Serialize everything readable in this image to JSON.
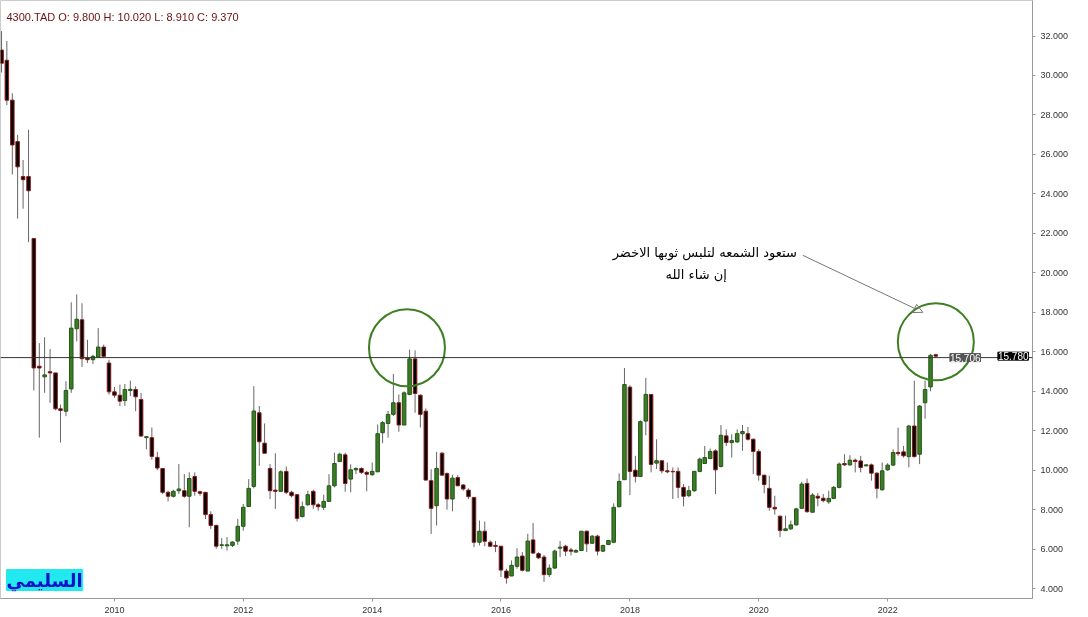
{
  "chart_data": {
    "type": "candlestick",
    "title": "4300.TAD  O: 9.800  H: 10.020  L: 8.910  C: 9.370",
    "x": [
      "2008-04",
      "2008-05",
      "2008-06",
      "2008-07",
      "2008-08",
      "2008-09",
      "2008-10",
      "2008-11",
      "2008-12",
      "2009-01",
      "2009-02",
      "2009-03",
      "2009-04",
      "2009-05",
      "2009-06",
      "2009-07",
      "2009-08",
      "2009-09",
      "2009-10",
      "2009-11",
      "2009-12",
      "2010-01",
      "2010-02",
      "2010-03",
      "2010-04",
      "2010-05",
      "2010-06",
      "2010-07",
      "2010-08",
      "2010-09",
      "2010-10",
      "2010-11",
      "2010-12",
      "2011-01",
      "2011-02",
      "2011-03",
      "2011-04",
      "2011-05",
      "2011-06",
      "2011-07",
      "2011-08",
      "2011-09",
      "2011-10",
      "2011-11",
      "2011-12",
      "2012-01",
      "2012-02",
      "2012-03",
      "2012-04",
      "2012-05",
      "2012-06",
      "2012-07",
      "2012-08",
      "2012-09",
      "2012-10",
      "2012-11",
      "2012-12",
      "2013-01",
      "2013-02",
      "2013-03",
      "2013-04",
      "2013-05",
      "2013-06",
      "2013-07",
      "2013-08",
      "2013-09",
      "2013-10",
      "2013-11",
      "2013-12",
      "2014-01",
      "2014-02",
      "2014-03",
      "2014-04",
      "2014-05",
      "2014-06",
      "2014-07",
      "2014-08",
      "2014-09",
      "2014-10",
      "2014-11",
      "2014-12",
      "2015-01",
      "2015-02",
      "2015-03",
      "2015-04",
      "2015-05",
      "2015-06",
      "2015-07",
      "2015-08",
      "2015-09",
      "2015-10",
      "2015-11",
      "2015-12",
      "2016-01",
      "2016-02",
      "2016-03",
      "2016-04",
      "2016-05",
      "2016-06",
      "2016-07",
      "2016-08",
      "2016-09",
      "2016-10",
      "2016-11",
      "2016-12",
      "2017-01",
      "2017-02",
      "2017-03",
      "2017-04",
      "2017-05",
      "2017-06",
      "2017-07",
      "2017-08",
      "2017-09",
      "2017-10",
      "2017-11",
      "2017-12",
      "2018-01",
      "2018-02",
      "2018-03",
      "2018-04",
      "2018-05",
      "2018-06",
      "2018-07",
      "2018-08",
      "2018-09",
      "2018-10",
      "2018-11",
      "2018-12",
      "2019-01",
      "2019-02",
      "2019-03",
      "2019-04",
      "2019-05",
      "2019-06",
      "2019-07",
      "2019-08",
      "2019-09",
      "2019-10",
      "2019-11",
      "2019-12",
      "2020-01",
      "2020-02",
      "2020-03",
      "2020-04",
      "2020-05",
      "2020-06",
      "2020-07",
      "2020-08",
      "2020-09",
      "2020-10",
      "2020-11",
      "2020-12",
      "2021-01",
      "2021-02",
      "2021-03",
      "2021-04",
      "2021-05",
      "2021-06",
      "2021-07",
      "2021-08",
      "2021-09",
      "2021-10",
      "2021-11",
      "2021-12",
      "2022-01",
      "2022-02",
      "2022-03",
      "2022-04",
      "2022-05",
      "2022-06",
      "2022-07",
      "2022-08",
      "2022-09",
      "2022-10"
    ],
    "ohlc": [
      [
        31.29,
        32.25,
        30.15,
        30.62
      ],
      [
        30.77,
        31.75,
        28.5,
        28.75
      ],
      [
        28.75,
        29.1,
        24.98,
        26.48
      ],
      [
        26.65,
        26.99,
        22.75,
        25.37
      ],
      [
        24.88,
        25.72,
        23.25,
        24.72
      ],
      [
        24.88,
        27.25,
        21.55,
        24.16
      ],
      [
        21.74,
        21.74,
        14.04,
        15.18
      ],
      [
        15.27,
        16.44,
        11.65,
        15.18
      ],
      [
        14.73,
        16.74,
        13.92,
        14.83
      ],
      [
        14.99,
        16.14,
        13.41,
        14.93
      ],
      [
        14.93,
        14.93,
        13.04,
        13.11
      ],
      [
        13.11,
        13.33,
        11.4,
        13.03
      ],
      [
        12.99,
        14.51,
        12.74,
        14.04
      ],
      [
        14.12,
        18.51,
        13.92,
        17.2
      ],
      [
        17.17,
        18.91,
        16.53,
        17.65
      ],
      [
        17.62,
        18.46,
        15.23,
        15.65
      ],
      [
        15.68,
        16.61,
        15.43,
        15.6
      ],
      [
        15.6,
        15.85,
        15.38,
        15.77
      ],
      [
        15.72,
        17.2,
        15.72,
        16.24
      ],
      [
        16.24,
        16.36,
        15.68,
        15.77
      ],
      [
        15.43,
        15.6,
        13.83,
        13.97
      ],
      [
        13.97,
        14.22,
        13.67,
        13.8
      ],
      [
        13.8,
        14.34,
        13.25,
        13.5
      ],
      [
        13.53,
        14.37,
        13.25,
        14.09
      ],
      [
        14.04,
        14.54,
        13.75,
        14.1
      ],
      [
        14.09,
        14.25,
        12.99,
        13.72
      ],
      [
        13.58,
        13.92,
        11.7,
        11.73
      ],
      [
        11.65,
        11.7,
        11.06,
        11.7
      ],
      [
        11.65,
        12.16,
        10.53,
        10.7
      ],
      [
        10.65,
        10.93,
        10.0,
        10.11
      ],
      [
        10.09,
        10.09,
        8.79,
        8.88
      ],
      [
        8.88,
        8.96,
        8.42,
        8.68
      ],
      [
        8.68,
        9.01,
        8.62,
        8.93
      ],
      [
        8.96,
        10.31,
        8.79,
        9.05
      ],
      [
        8.96,
        9.8,
        8.6,
        8.68
      ],
      [
        8.68,
        9.89,
        7.11,
        9.58
      ],
      [
        9.68,
        9.89,
        8.71,
        8.93
      ],
      [
        8.91,
        8.96,
        8.71,
        8.83
      ],
      [
        8.88,
        8.88,
        7.53,
        7.75
      ],
      [
        7.75,
        7.92,
        7.03,
        7.2
      ],
      [
        7.2,
        7.25,
        6.02,
        6.15
      ],
      [
        6.19,
        6.56,
        6.02,
        6.22
      ],
      [
        6.17,
        6.61,
        5.93,
        6.22
      ],
      [
        6.19,
        6.4,
        6.1,
        6.36
      ],
      [
        6.41,
        7.53,
        6.22,
        7.16
      ],
      [
        7.16,
        8.29,
        6.94,
        8.12
      ],
      [
        8.16,
        9.55,
        8.16,
        9.08
      ],
      [
        9.18,
        14.26,
        9.08,
        13.0
      ],
      [
        12.91,
        13.25,
        10.22,
        11.44
      ],
      [
        11.37,
        12.37,
        10.86,
        10.86
      ],
      [
        10.09,
        10.31,
        8.54,
        8.96
      ],
      [
        8.99,
        10.86,
        8.04,
        8.93
      ],
      [
        8.93,
        10.0,
        8.9,
        9.92
      ],
      [
        9.94,
        10.19,
        8.79,
        8.88
      ],
      [
        8.88,
        8.96,
        8.62,
        8.71
      ],
      [
        8.76,
        8.79,
        7.4,
        7.56
      ],
      [
        7.65,
        8.41,
        7.61,
        8.15
      ],
      [
        8.25,
        8.96,
        8.2,
        8.76
      ],
      [
        8.93,
        9.01,
        8.04,
        8.25
      ],
      [
        8.25,
        8.34,
        7.95,
        8.15
      ],
      [
        8.12,
        8.76,
        7.98,
        8.42
      ],
      [
        8.42,
        9.8,
        8.41,
        9.21
      ],
      [
        9.21,
        10.89,
        9.13,
        10.34
      ],
      [
        10.44,
        10.89,
        10.42,
        10.81
      ],
      [
        10.78,
        10.89,
        8.91,
        9.33
      ],
      [
        9.55,
        10.3,
        8.88,
        10.02
      ],
      [
        10.02,
        10.14,
        9.8,
        10.09
      ],
      [
        10.09,
        10.14,
        9.8,
        9.89
      ],
      [
        9.89,
        9.97,
        8.93,
        9.8
      ],
      [
        9.77,
        10.39,
        9.72,
        9.94
      ],
      [
        9.92,
        12.32,
        9.9,
        11.85
      ],
      [
        11.9,
        12.5,
        11.37,
        12.41
      ],
      [
        12.37,
        13.0,
        11.65,
        12.83
      ],
      [
        12.83,
        14.88,
        12.74,
        13.42
      ],
      [
        13.42,
        13.84,
        11.95,
        12.29
      ],
      [
        12.29,
        14.0,
        12.29,
        13.92
      ],
      [
        13.84,
        16.11,
        13.8,
        15.64
      ],
      [
        15.64,
        16.07,
        12.91,
        13.89
      ],
      [
        13.8,
        13.84,
        12.16,
        12.83
      ],
      [
        12.99,
        13.13,
        9.5,
        9.5
      ],
      [
        9.47,
        10.05,
        6.77,
        8.07
      ],
      [
        8.2,
        10.93,
        7.2,
        10.09
      ],
      [
        10.86,
        10.93,
        9.72,
        9.75
      ],
      [
        9.83,
        9.89,
        8.0,
        8.54
      ],
      [
        8.54,
        9.77,
        7.92,
        9.6
      ],
      [
        9.63,
        9.75,
        9.21,
        9.21
      ],
      [
        9.25,
        9.3,
        8.96,
        9.05
      ],
      [
        8.99,
        9.08,
        8.54,
        8.66
      ],
      [
        8.62,
        8.65,
        6.1,
        6.35
      ],
      [
        6.35,
        7.45,
        6.19,
        6.91
      ],
      [
        6.91,
        7.4,
        6.15,
        6.4
      ],
      [
        6.35,
        6.44,
        6.1,
        6.15
      ],
      [
        6.19,
        6.41,
        5.85,
        6.14
      ],
      [
        6.15,
        6.15,
        4.59,
        4.94
      ],
      [
        4.89,
        5.01,
        4.25,
        4.54
      ],
      [
        4.64,
        5.43,
        4.64,
        5.18
      ],
      [
        5.13,
        6.05,
        5.01,
        5.6
      ],
      [
        5.65,
        5.85,
        4.87,
        4.93
      ],
      [
        4.89,
        6.78,
        4.89,
        6.41
      ],
      [
        6.47,
        7.33,
        5.77,
        5.8
      ],
      [
        5.77,
        5.85,
        5.5,
        5.56
      ],
      [
        5.6,
        5.71,
        4.34,
        4.71
      ],
      [
        4.71,
        5.23,
        4.59,
        5.04
      ],
      [
        5.04,
        5.98,
        5.01,
        5.9
      ],
      [
        6.05,
        6.41,
        5.6,
        6.1
      ],
      [
        6.15,
        6.22,
        5.65,
        5.9
      ],
      [
        5.96,
        6.07,
        5.68,
        5.9
      ],
      [
        5.85,
        6.0,
        5.82,
        5.93
      ],
      [
        5.93,
        6.91,
        5.9,
        6.91
      ],
      [
        6.91,
        6.94,
        5.85,
        6.27
      ],
      [
        6.3,
        6.71,
        6.27,
        6.66
      ],
      [
        6.66,
        6.73,
        5.68,
        5.9
      ],
      [
        5.9,
        6.22,
        5.85,
        6.19
      ],
      [
        6.24,
        6.47,
        6.2,
        6.44
      ],
      [
        6.35,
        8.32,
        6.3,
        8.12
      ],
      [
        8.15,
        9.84,
        8.12,
        9.43
      ],
      [
        9.52,
        15.18,
        9.52,
        14.34
      ],
      [
        14.21,
        14.3,
        8.74,
        9.94
      ],
      [
        10.0,
        10.73,
        9.38,
        9.68
      ],
      [
        9.68,
        12.53,
        9.68,
        12.46
      ],
      [
        12.49,
        14.68,
        11.77,
        13.84
      ],
      [
        13.84,
        13.84,
        9.89,
        10.29
      ],
      [
        10.36,
        11.57,
        10.06,
        10.48
      ],
      [
        10.48,
        10.48,
        9.84,
        9.97
      ],
      [
        9.97,
        10.39,
        9.84,
        9.92
      ],
      [
        9.94,
        10.14,
        8.54,
        9.92
      ],
      [
        9.94,
        10.14,
        8.59,
        9.13
      ],
      [
        9.13,
        9.3,
        8.17,
        8.68
      ],
      [
        8.71,
        9.21,
        8.63,
        8.96
      ],
      [
        8.96,
        9.97,
        8.9,
        9.94
      ],
      [
        9.94,
        10.64,
        9.89,
        10.56
      ],
      [
        10.34,
        11.23,
        10.31,
        10.64
      ],
      [
        10.59,
        11.1,
        10.56,
        10.95
      ],
      [
        10.98,
        11.06,
        8.79,
        10.02
      ],
      [
        10.19,
        12.29,
        10.14,
        11.77
      ],
      [
        11.74,
        12.07,
        11.23,
        11.4
      ],
      [
        11.4,
        11.82,
        10.64,
        11.5
      ],
      [
        11.43,
        12.07,
        11.4,
        11.85
      ],
      [
        11.85,
        12.29,
        10.98,
        11.96
      ],
      [
        11.85,
        12.19,
        11.5,
        11.57
      ],
      [
        11.57,
        11.6,
        9.8,
        10.95
      ],
      [
        10.95,
        11.06,
        9.47,
        9.75
      ],
      [
        9.75,
        9.75,
        8.83,
        9.27
      ],
      [
        9.08,
        9.72,
        7.95,
        8.12
      ],
      [
        8.12,
        8.71,
        7.75,
        8.04
      ],
      [
        7.67,
        7.7,
        6.61,
        6.94
      ],
      [
        6.94,
        7.7,
        6.94,
        7.03
      ],
      [
        7.03,
        7.45,
        6.98,
        7.23
      ],
      [
        7.23,
        8.1,
        7.2,
        8.04
      ],
      [
        8.07,
        9.42,
        8.04,
        9.3
      ],
      [
        9.33,
        9.58,
        7.84,
        7.9
      ],
      [
        7.87,
        8.83,
        7.87,
        8.74
      ],
      [
        8.68,
        8.84,
        8.17,
        8.59
      ],
      [
        8.58,
        8.79,
        8.37,
        8.46
      ],
      [
        8.4,
        8.96,
        8.29,
        8.57
      ],
      [
        8.57,
        9.2,
        8.54,
        9.13
      ],
      [
        9.13,
        10.39,
        9.08,
        10.31
      ],
      [
        10.34,
        10.81,
        10.22,
        10.27
      ],
      [
        10.27,
        10.76,
        10.22,
        10.51
      ],
      [
        10.51,
        10.59,
        9.89,
        10.44
      ],
      [
        10.47,
        10.73,
        9.89,
        10.14
      ],
      [
        10.22,
        10.3,
        10.2,
        10.27
      ],
      [
        10.27,
        10.34,
        9.47,
        9.85
      ],
      [
        9.85,
        9.9,
        8.57,
        9.08
      ],
      [
        9.01,
        10.39,
        8.96,
        9.97
      ],
      [
        10.02,
        10.36,
        9.97,
        10.26
      ],
      [
        10.26,
        11.06,
        10.2,
        10.9
      ],
      [
        10.9,
        12.16,
        10.73,
        10.84
      ],
      [
        10.93,
        11.23,
        10.64,
        10.73
      ],
      [
        10.69,
        12.3,
        10.14,
        12.24
      ],
      [
        12.24,
        14.54,
        10.64,
        10.69
      ],
      [
        10.81,
        13.3,
        10.31,
        13.25
      ],
      [
        13.42,
        14.54,
        12.61,
        14.09
      ],
      [
        14.22,
        15.9,
        14.0,
        15.82
      ],
      [
        15.85,
        15.9,
        15.7,
        15.78
      ]
    ],
    "xlim": [
      "2008-03-26",
      "2024-04"
    ],
    "ylim": [
      3.5,
      33.8
    ],
    "xticks": [
      "2010",
      "2012",
      "2014",
      "2016",
      "2018",
      "2020",
      "2022"
    ],
    "yticks": [
      {
        "value": 4,
        "label": "4.000"
      },
      {
        "value": 6,
        "label": "6.000"
      },
      {
        "value": 8,
        "label": "8.000"
      },
      {
        "value": 10,
        "label": "10.000"
      },
      {
        "value": 12,
        "label": "12.000"
      },
      {
        "value": 14,
        "label": "14.000"
      },
      {
        "value": 16,
        "label": "16.000"
      },
      {
        "value": 18,
        "label": "18.000"
      },
      {
        "value": 20,
        "label": "20.000"
      },
      {
        "value": 22,
        "label": "22.000"
      },
      {
        "value": 24,
        "label": "24.000"
      },
      {
        "value": 26,
        "label": "26.000"
      },
      {
        "value": 28,
        "label": "28.000"
      },
      {
        "value": 30,
        "label": "30.000"
      },
      {
        "value": 32,
        "label": "32.000"
      }
    ],
    "ref_lines": [
      {
        "axis": "y",
        "value": 15.706,
        "label": "15.706",
        "color": "#333333"
      }
    ],
    "annotations": [
      "ستعود الشمعه لتلبس ثوبها الاخضر\nإن شاء الله",
      "15.780",
      "السليمي"
    ]
  }
}
